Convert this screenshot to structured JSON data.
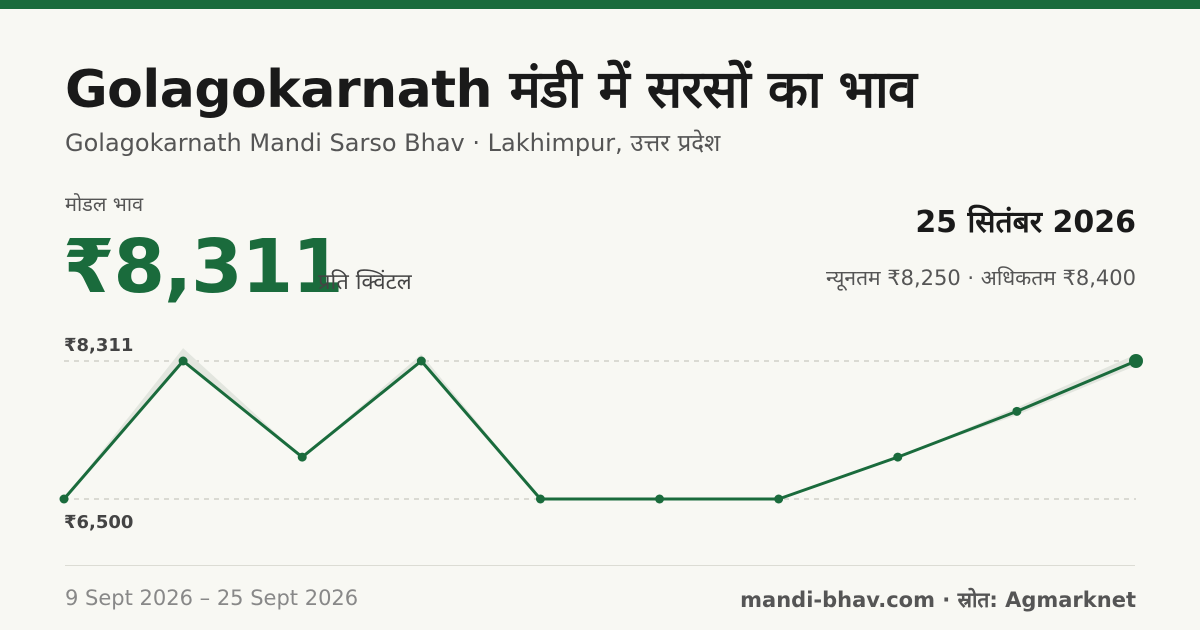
{
  "header": {
    "title": "Golagokarnath मंडी में सरसों का भाव",
    "subtitle": "Golagokarnath Mandi Sarso Bhav · Lakhimpur, उत्तर प्रदेश"
  },
  "summary": {
    "price_label": "मोडल भाव",
    "price_value": "₹8,311",
    "price_unit": "प्रति क्विंटल",
    "date": "25 सितंबर 2026",
    "range_text": "न्यूनतम ₹8,250 · अधिकतम ₹8,400"
  },
  "footer": {
    "date_range": "9 Sept 2026 – 25 Sept 2026",
    "source": "mandi-bhav.com · स्रोत: Agmarknet"
  },
  "colors": {
    "accent": "#1a6b3c",
    "background": "#f8f8f3",
    "band": "#e3e6df",
    "grid": "#c8c8c0"
  },
  "chart_data": {
    "type": "line",
    "x": [
      "9 Sept 2026",
      "",
      "",
      "",
      "",
      "",
      "",
      "",
      "",
      "25 Sept 2026"
    ],
    "series": [
      {
        "values": [
          6500,
          8311,
          7050,
          8311,
          6500,
          6500,
          6500,
          7050,
          7650,
          8311
        ],
        "band_min": [
          6500,
          8311,
          7050,
          8311,
          6500,
          6500,
          6500,
          7050,
          7600,
          8250
        ],
        "band_max": [
          6500,
          8480,
          7050,
          8400,
          6500,
          6500,
          6500,
          7050,
          7700,
          8400
        ]
      }
    ],
    "yticks": [
      8311,
      6500
    ],
    "ytick_labels": [
      "₹8,311",
      "₹6,500"
    ],
    "ylim": [
      6500,
      8311
    ],
    "grid": "dashed reference lines at min and max",
    "legend": "none"
  }
}
